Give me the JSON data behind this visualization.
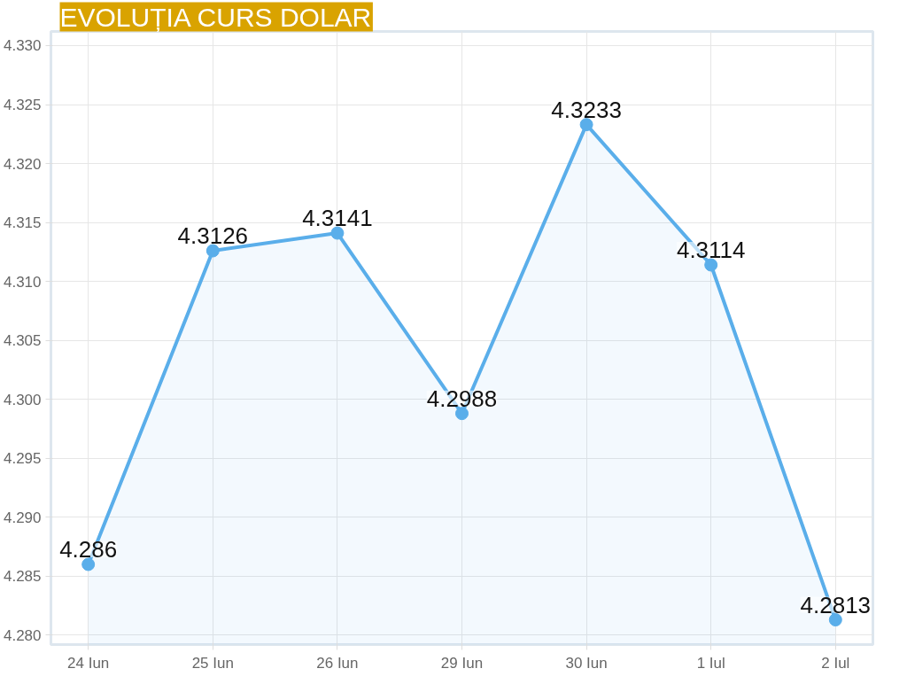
{
  "chart_data": {
    "type": "area",
    "title": "EVOLUȚIA CURS DOLAR",
    "categories": [
      "24 Iun",
      "25 Iun",
      "26 Iun",
      "29 Iun",
      "30 Iun",
      "1 Iul",
      "2 Iul"
    ],
    "series": [
      {
        "color": "#5aaeea",
        "values": [
          4.286,
          4.3126,
          4.3141,
          4.2988,
          4.3233,
          4.3114,
          4.2813
        ]
      }
    ],
    "ylim": [
      4.2792,
      4.3312
    ],
    "yticks": [
      {
        "value": 4.28,
        "label": "4.280"
      },
      {
        "value": 4.285,
        "label": "4.285"
      },
      {
        "value": 4.29,
        "label": "4.290"
      },
      {
        "value": 4.295,
        "label": "4.295"
      },
      {
        "value": 4.3,
        "label": "4.300"
      },
      {
        "value": 4.305,
        "label": "4.305"
      },
      {
        "value": 4.31,
        "label": "4.310"
      },
      {
        "value": 4.315,
        "label": "4.315"
      },
      {
        "value": 4.32,
        "label": "4.320"
      },
      {
        "value": 4.325,
        "label": "4.325"
      },
      {
        "value": 4.33,
        "label": "4.330"
      }
    ],
    "grid": true,
    "marker": "circle",
    "data_labels": true
  }
}
